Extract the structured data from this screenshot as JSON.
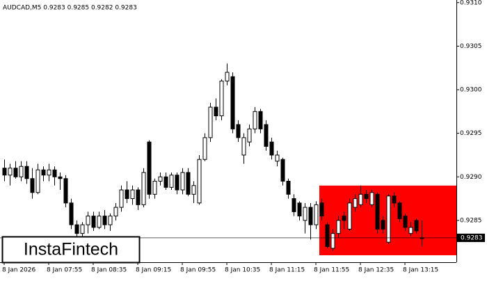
{
  "chart_data": {
    "type": "candlestick",
    "header": "AUDCAD,M5  0.9283 0.9285 0.9282 0.9283",
    "logo": "InstaFintech",
    "categories": [
      "8 Jan 2026",
      null,
      null,
      null,
      null,
      null,
      null,
      null,
      "8 Jan 07:55",
      null,
      null,
      null,
      null,
      null,
      null,
      null,
      "8 Jan 08:35",
      null,
      null,
      null,
      null,
      null,
      null,
      null,
      "8 Jan 09:15",
      null,
      null,
      null,
      null,
      null,
      null,
      null,
      "8 Jan 09:55",
      null,
      null,
      null,
      null,
      null,
      null,
      null,
      "8 Jan 10:35",
      null,
      null,
      null,
      null,
      null,
      null,
      null,
      "8 Jan 11:15",
      null,
      null,
      null,
      null,
      null,
      null,
      null,
      "8 Jan 11:55",
      null,
      null,
      null,
      null,
      null,
      null,
      null,
      "8 Jan 12:35",
      null,
      null,
      null,
      null,
      null,
      null,
      null,
      "8 Jan 13:15",
      null,
      null,
      null
    ],
    "open": [
      0.9291,
      0.92902,
      0.9291,
      0.929,
      0.92912,
      0.92898,
      0.92882,
      0.92908,
      0.92902,
      0.92908,
      0.929,
      0.92898,
      0.9287,
      0.92845,
      0.92835,
      0.92845,
      0.92855,
      0.92842,
      0.92855,
      0.92845,
      0.92855,
      0.92865,
      0.92885,
      0.92875,
      0.92885,
      0.92868,
      0.9294,
      0.9288,
      0.92895,
      0.929,
      0.92888,
      0.92902,
      0.92885,
      0.92905,
      0.9288,
      0.9287,
      0.9292,
      0.92945,
      0.9298,
      0.9297,
      0.9301,
      0.93015,
      0.9296,
      0.92925,
      0.9294,
      0.92955,
      0.92975,
      0.9296,
      0.9294,
      0.92918,
      0.9292,
      0.92895,
      0.92875,
      0.9287,
      0.9285,
      0.92865,
      0.92845,
      0.9287,
      0.92845,
      0.92818,
      0.92835,
      0.92855,
      0.9284,
      0.92865,
      0.92868,
      0.9288,
      0.92868,
      0.9288,
      0.9285,
      0.92825,
      0.92878,
      0.9287,
      0.92855,
      0.92835,
      0.9285,
      0.9283
    ],
    "high": [
      0.9292,
      0.92915,
      0.92918,
      0.92918,
      0.92918,
      0.9291,
      0.92915,
      0.92912,
      0.92915,
      0.92912,
      0.92905,
      0.92902,
      0.92875,
      0.9285,
      0.92848,
      0.9286,
      0.9286,
      0.9286,
      0.92862,
      0.92858,
      0.9287,
      0.9289,
      0.92895,
      0.9289,
      0.92888,
      0.9291,
      0.92942,
      0.92898,
      0.92905,
      0.92905,
      0.92905,
      0.92905,
      0.9291,
      0.9291,
      0.92895,
      0.92925,
      0.9295,
      0.92985,
      0.9299,
      0.93012,
      0.9303,
      0.9302,
      0.92965,
      0.9295,
      0.9296,
      0.9298,
      0.92978,
      0.92965,
      0.92945,
      0.9293,
      0.92922,
      0.92898,
      0.9288,
      0.92872,
      0.9287,
      0.9287,
      0.92872,
      0.92875,
      0.92848,
      0.9284,
      0.92855,
      0.9286,
      0.92875,
      0.9288,
      0.9289,
      0.92885,
      0.92885,
      0.92882,
      0.92855,
      0.9288,
      0.92882,
      0.92872,
      0.92858,
      0.92848,
      0.92852,
      0.9285
    ],
    "low": [
      0.92895,
      0.9289,
      0.92898,
      0.92895,
      0.92892,
      0.92875,
      0.9288,
      0.92895,
      0.92895,
      0.9289,
      0.92885,
      0.92865,
      0.9284,
      0.92825,
      0.9282,
      0.92835,
      0.92838,
      0.9284,
      0.9284,
      0.92838,
      0.9285,
      0.9286,
      0.9287,
      0.92868,
      0.92862,
      0.92865,
      0.92875,
      0.92875,
      0.9289,
      0.92885,
      0.92885,
      0.9288,
      0.9288,
      0.92878,
      0.9287,
      0.92868,
      0.92918,
      0.9294,
      0.92965,
      0.92965,
      0.93005,
      0.9295,
      0.9294,
      0.92915,
      0.92935,
      0.9295,
      0.9295,
      0.9293,
      0.9292,
      0.92912,
      0.9289,
      0.92875,
      0.92855,
      0.9285,
      0.92835,
      0.92828,
      0.9284,
      0.9285,
      0.92818,
      0.92815,
      0.9283,
      0.9284,
      0.92838,
      0.9286,
      0.92865,
      0.9287,
      0.92865,
      0.92835,
      0.92835,
      0.92823,
      0.92865,
      0.92848,
      0.92838,
      0.92832,
      0.92835,
      0.9282
    ],
    "close": [
      0.92902,
      0.9291,
      0.929,
      0.92912,
      0.92898,
      0.92882,
      0.92908,
      0.92902,
      0.92908,
      0.929,
      0.92898,
      0.9287,
      0.92845,
      0.92835,
      0.92845,
      0.92855,
      0.92842,
      0.92855,
      0.92845,
      0.92855,
      0.92865,
      0.92885,
      0.92875,
      0.92885,
      0.92868,
      0.92905,
      0.9288,
      0.92895,
      0.929,
      0.92888,
      0.92902,
      0.92885,
      0.92905,
      0.9288,
      0.9289,
      0.9292,
      0.92945,
      0.9298,
      0.9297,
      0.9301,
      0.9302,
      0.92955,
      0.92945,
      0.92945,
      0.92955,
      0.92975,
      0.92955,
      0.92935,
      0.92925,
      0.92925,
      0.92895,
      0.9288,
      0.9286,
      0.92855,
      0.92865,
      0.92845,
      0.92868,
      0.92855,
      0.9282,
      0.92835,
      0.9285,
      0.9285,
      0.9287,
      0.92875,
      0.9288,
      0.92875,
      0.92882,
      0.9284,
      0.9284,
      0.92878,
      0.9287,
      0.92852,
      0.92842,
      0.92842,
      0.92838,
      0.9283
    ],
    "ylim": [
      0.92802,
      0.93103
    ],
    "yticks": [
      {
        "value": 0.931,
        "label": "0.9310"
      },
      0.9305,
      {
        "value": 0.93,
        "label": "0.9300"
      },
      0.9295,
      {
        "value": 0.929,
        "label": "0.9290"
      },
      0.9285
    ],
    "last_price": 0.9283,
    "zone": {
      "high": 0.9289,
      "low": 0.9281,
      "color": "#ff0000"
    }
  }
}
